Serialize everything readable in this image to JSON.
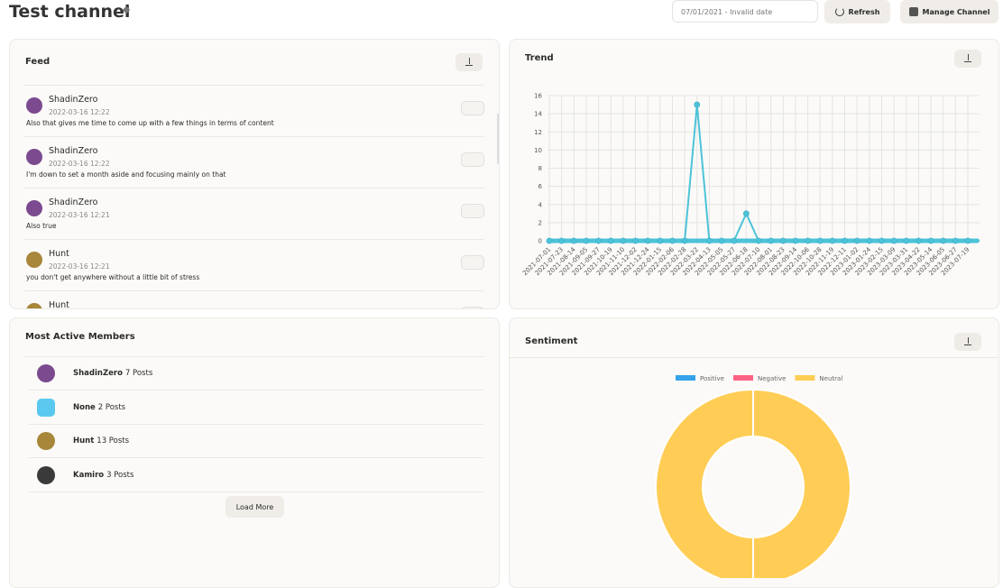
{
  "header": {
    "title": "Test channel",
    "date_range": "07/01/2021 - Invalid date",
    "refresh": "Refresh",
    "manage": "Manage Channel"
  },
  "feed": {
    "title": "Feed",
    "items": [
      {
        "user": "ShadinZero",
        "time": "2022-03-16 12:22",
        "text": "Also that gives me time to come up with a few things in terms of content"
      },
      {
        "user": "ShadinZero",
        "time": "2022-03-16 12:22",
        "text": "I'm down to set a month aside and focusing mainly on that"
      },
      {
        "user": "ShadinZero",
        "time": "2022-03-16 12:21",
        "text": "Also true"
      },
      {
        "user": "Hunt",
        "time": "2022-03-16 12:21",
        "text": "you don't get anywhere without a little bit of stress"
      },
      {
        "user": "Hunt"
      }
    ]
  },
  "members": {
    "title": "Most Active Members",
    "items": [
      {
        "name": "ShadinZero",
        "posts": "7 Posts"
      },
      {
        "name": "None",
        "posts": "2 Posts"
      },
      {
        "name": "Hunt",
        "posts": "13 Posts"
      },
      {
        "name": "Kamiro",
        "posts": "3 Posts"
      }
    ],
    "load_more": "Load More"
  },
  "chart_data": [
    {
      "type": "line",
      "title": "Trend",
      "categories": [
        "2021-07-01",
        "2021-07-23",
        "2021-08-14",
        "2021-09-05",
        "2021-09-27",
        "2021-10-19",
        "2021-11-10",
        "2021-12-02",
        "2021-12-24",
        "2022-01-15",
        "2022-02-06",
        "2022-02-28",
        "2022-03-22",
        "2022-04-13",
        "2022-05-05",
        "2022-05-27",
        "2022-06-18",
        "2022-07-10",
        "2022-08-01",
        "2022-08-23",
        "2022-09-14",
        "2022-10-06",
        "2022-10-28",
        "2022-11-19",
        "2022-12-11",
        "2023-01-02",
        "2023-01-24",
        "2023-02-15",
        "2023-03-09",
        "2023-03-31",
        "2023-04-22",
        "2023-05-14",
        "2023-06-05",
        "2023-06-27",
        "2023-07-19"
      ],
      "values": [
        0,
        0,
        0,
        0,
        0,
        0,
        0,
        0,
        0,
        0,
        0,
        0,
        15,
        0,
        0,
        0,
        3,
        0,
        0,
        0,
        0,
        0,
        0,
        0,
        0,
        0,
        0,
        0,
        0,
        0,
        0,
        0,
        0,
        0,
        0
      ],
      "color": "#4dc3d8",
      "ylim": [
        0,
        16
      ],
      "yticks": [
        0,
        2,
        4,
        6,
        8,
        10,
        12,
        14,
        16
      ],
      "grid": true
    },
    {
      "type": "doughnut",
      "title": "Sentiment",
      "categories": [
        "Positive",
        "Negative",
        "Neutral"
      ],
      "values": [
        0,
        0,
        25
      ],
      "colors": [
        "#36a2eb",
        "#ff6384",
        "#ffcd56"
      ],
      "legend": "top"
    }
  ]
}
